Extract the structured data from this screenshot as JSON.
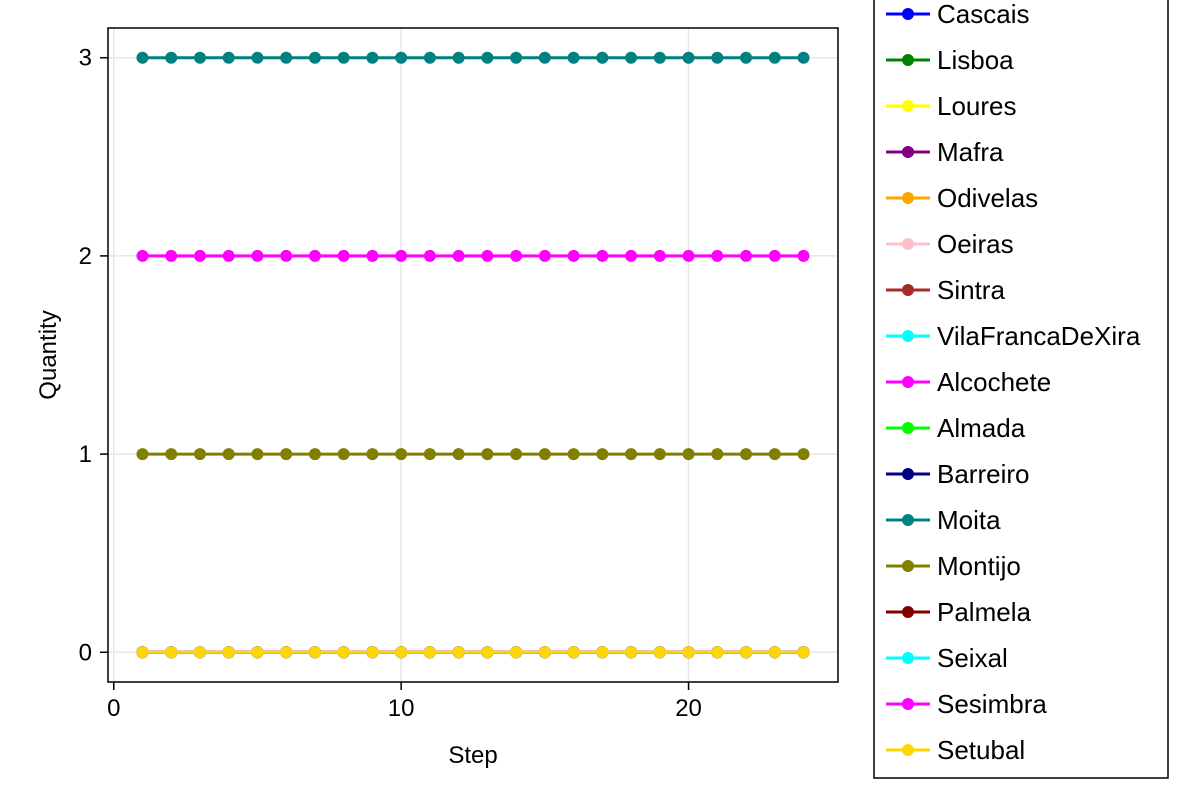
{
  "chart_data": {
    "type": "line",
    "xlabel": "Step",
    "ylabel": "Quantity",
    "xlim": [
      -0.2,
      25.2
    ],
    "ylim": [
      -0.15,
      3.15
    ],
    "x_ticks": [
      0,
      10,
      20
    ],
    "x_tick_labels": [
      "0",
      "10",
      "20"
    ],
    "y_ticks": [
      0,
      1,
      2,
      3
    ],
    "y_tick_labels": [
      "0",
      "1",
      "2",
      "3"
    ],
    "grid": true,
    "legend_position": "right-outside",
    "x": [
      1,
      2,
      3,
      4,
      5,
      6,
      7,
      8,
      9,
      10,
      11,
      12,
      13,
      14,
      15,
      16,
      17,
      18,
      19,
      20,
      21,
      22,
      23,
      24
    ],
    "series": [
      {
        "name": "Cascais",
        "color": "#0000ff",
        "values": [
          0,
          0,
          0,
          0,
          0,
          0,
          0,
          0,
          0,
          0,
          0,
          0,
          0,
          0,
          0,
          0,
          0,
          0,
          0,
          0,
          0,
          0,
          0,
          0
        ]
      },
      {
        "name": "Lisboa",
        "color": "#008000",
        "values": [
          0,
          0,
          0,
          0,
          0,
          0,
          0,
          0,
          0,
          0,
          0,
          0,
          0,
          0,
          0,
          0,
          0,
          0,
          0,
          0,
          0,
          0,
          0,
          0
        ]
      },
      {
        "name": "Loures",
        "color": "#ffff00",
        "values": [
          0,
          0,
          0,
          0,
          0,
          0,
          0,
          0,
          0,
          0,
          0,
          0,
          0,
          0,
          0,
          0,
          0,
          0,
          0,
          0,
          0,
          0,
          0,
          0
        ]
      },
      {
        "name": "Mafra",
        "color": "#800080",
        "values": [
          0,
          0,
          0,
          0,
          0,
          0,
          0,
          0,
          0,
          0,
          0,
          0,
          0,
          0,
          0,
          0,
          0,
          0,
          0,
          0,
          0,
          0,
          0,
          0
        ]
      },
      {
        "name": "Odivelas",
        "color": "#ffa500",
        "values": [
          0,
          0,
          0,
          0,
          0,
          0,
          0,
          0,
          0,
          0,
          0,
          0,
          0,
          0,
          0,
          0,
          0,
          0,
          0,
          0,
          0,
          0,
          0,
          0
        ]
      },
      {
        "name": "Oeiras",
        "color": "#ffc0cb",
        "values": [
          0,
          0,
          0,
          0,
          0,
          0,
          0,
          0,
          0,
          0,
          0,
          0,
          0,
          0,
          0,
          0,
          0,
          0,
          0,
          0,
          0,
          0,
          0,
          0
        ]
      },
      {
        "name": "Sintra",
        "color": "#a52a2a",
        "values": [
          0,
          0,
          0,
          0,
          0,
          0,
          0,
          0,
          0,
          0,
          0,
          0,
          0,
          0,
          0,
          0,
          0,
          0,
          0,
          0,
          0,
          0,
          0,
          0
        ]
      },
      {
        "name": "VilaFrancaDeXira",
        "color": "#00ffff",
        "values": [
          0,
          0,
          0,
          0,
          0,
          0,
          0,
          0,
          0,
          0,
          0,
          0,
          0,
          0,
          0,
          0,
          0,
          0,
          0,
          0,
          0,
          0,
          0,
          0
        ]
      },
      {
        "name": "Alcochete",
        "color": "#ff00ff",
        "values": [
          2,
          2,
          2,
          2,
          2,
          2,
          2,
          2,
          2,
          2,
          2,
          2,
          2,
          2,
          2,
          2,
          2,
          2,
          2,
          2,
          2,
          2,
          2,
          2
        ]
      },
      {
        "name": "Almada",
        "color": "#00ff00",
        "values": [
          0,
          0,
          0,
          0,
          0,
          0,
          0,
          0,
          0,
          0,
          0,
          0,
          0,
          0,
          0,
          0,
          0,
          0,
          0,
          0,
          0,
          0,
          0,
          0
        ]
      },
      {
        "name": "Barreiro",
        "color": "#000080",
        "values": [
          0,
          0,
          0,
          0,
          0,
          0,
          0,
          0,
          0,
          0,
          0,
          0,
          0,
          0,
          0,
          0,
          0,
          0,
          0,
          0,
          0,
          0,
          0,
          0
        ]
      },
      {
        "name": "Moita",
        "color": "#008080",
        "values": [
          3,
          3,
          3,
          3,
          3,
          3,
          3,
          3,
          3,
          3,
          3,
          3,
          3,
          3,
          3,
          3,
          3,
          3,
          3,
          3,
          3,
          3,
          3,
          3
        ]
      },
      {
        "name": "Montijo",
        "color": "#808000",
        "values": [
          1,
          1,
          1,
          1,
          1,
          1,
          1,
          1,
          1,
          1,
          1,
          1,
          1,
          1,
          1,
          1,
          1,
          1,
          1,
          1,
          1,
          1,
          1,
          1
        ]
      },
      {
        "name": "Palmela",
        "color": "#800000",
        "values": [
          0,
          0,
          0,
          0,
          0,
          0,
          0,
          0,
          0,
          0,
          0,
          0,
          0,
          0,
          0,
          0,
          0,
          0,
          0,
          0,
          0,
          0,
          0,
          0
        ]
      },
      {
        "name": "Seixal",
        "color": "#00ffff",
        "values": [
          0,
          0,
          0,
          0,
          0,
          0,
          0,
          0,
          0,
          0,
          0,
          0,
          0,
          0,
          0,
          0,
          0,
          0,
          0,
          0,
          0,
          0,
          0,
          0
        ]
      },
      {
        "name": "Sesimbra",
        "color": "#ff00ff",
        "values": [
          0,
          0,
          0,
          0,
          0,
          0,
          0,
          0,
          0,
          0,
          0,
          0,
          0,
          0,
          0,
          0,
          0,
          0,
          0,
          0,
          0,
          0,
          0,
          0
        ]
      },
      {
        "name": "Setubal",
        "color": "#ffd700",
        "values": [
          0,
          0,
          0,
          0,
          0,
          0,
          0,
          0,
          0,
          0,
          0,
          0,
          0,
          0,
          0,
          0,
          0,
          0,
          0,
          0,
          0,
          0,
          0,
          0
        ]
      }
    ]
  }
}
